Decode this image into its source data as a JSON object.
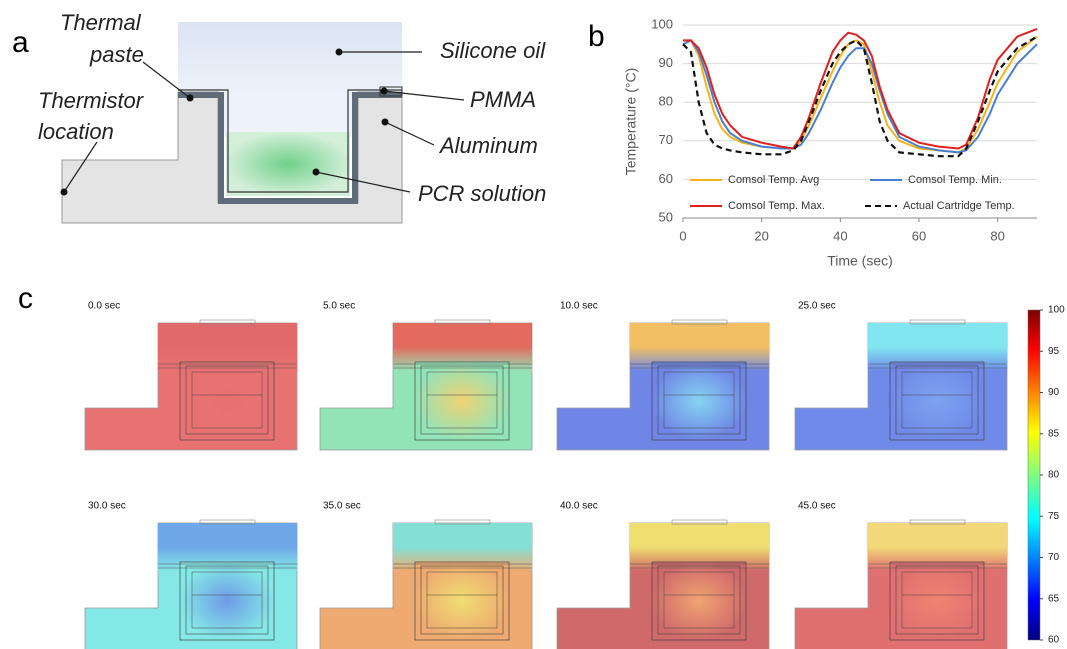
{
  "panel_labels": [
    "a",
    "b",
    "c"
  ],
  "diagram": {
    "labels": [
      "Thermal",
      "paste",
      "Thermistor",
      "location",
      "Silicone oil",
      "PMMA",
      "Aluminum",
      "PCR solution"
    ]
  },
  "chart_data": [
    {
      "type": "line",
      "x_label": "Time (sec)",
      "y_label": "Temperature (°C)",
      "x": [
        0,
        2,
        4,
        6,
        8,
        10,
        12,
        15,
        20,
        25,
        28,
        30,
        32,
        35,
        38,
        40,
        42,
        44,
        46,
        48,
        50,
        52,
        55,
        60,
        65,
        70,
        72,
        75,
        78,
        80,
        85,
        90
      ],
      "xlim": [
        0,
        90
      ],
      "xticks": [
        0,
        20,
        40,
        60,
        80
      ],
      "ylim": [
        50,
        100
      ],
      "yticks": [
        50,
        60,
        70,
        80,
        90,
        100
      ],
      "grid": true,
      "series": [
        {
          "name": "Comsol Temp. Avg",
          "color": "#f5b21a",
          "dash": false,
          "values": [
            96,
            96,
            92,
            84,
            77,
            73,
            71,
            69.5,
            68.5,
            68,
            68,
            70,
            74,
            81,
            88,
            92,
            95,
            96,
            95,
            88,
            80,
            74,
            70,
            68,
            67.5,
            67,
            68,
            73,
            80,
            85,
            93,
            97
          ]
        },
        {
          "name": "Comsol Temp. Min.",
          "color": "#4a7fd0",
          "dash": false,
          "values": [
            95,
            96,
            93,
            87,
            80,
            75,
            72,
            70,
            68.5,
            68,
            68,
            69,
            72,
            78,
            85,
            89,
            92,
            94,
            94,
            90,
            83,
            77,
            71,
            68.5,
            67.5,
            67,
            67.5,
            71,
            77,
            82,
            90,
            95
          ]
        },
        {
          "name": "Comsol Temp. Max.",
          "color": "#e0201e",
          "dash": false,
          "values": [
            96,
            96,
            94,
            89,
            82,
            77,
            74,
            71,
            69.5,
            68.5,
            68,
            71,
            76,
            85,
            93,
            96,
            98,
            97.5,
            96,
            92,
            84,
            78,
            72,
            69.5,
            68.5,
            68,
            69,
            76,
            86,
            91,
            97,
            99
          ]
        },
        {
          "name": "Actual Cartridge Temp.",
          "color": "#111111",
          "dash": true,
          "values": [
            95,
            93,
            80,
            72,
            69,
            68,
            67.5,
            67,
            66.5,
            66.5,
            67.5,
            70,
            75,
            83,
            90,
            93,
            95,
            96,
            94,
            85,
            75,
            70,
            67,
            66.5,
            66,
            66,
            68,
            75,
            83,
            88,
            94,
            97
          ]
        }
      ]
    },
    {
      "type": "colorbar",
      "ylim": [
        60,
        100
      ],
      "yticks": [
        60,
        65,
        70,
        75,
        80,
        85,
        90,
        95,
        100
      ]
    }
  ],
  "snapshots": {
    "labels": [
      "0.0 sec",
      "5.0 sec",
      "10.0 sec",
      "25.0 sec",
      "30.0 sec",
      "35.0 sec",
      "40.0 sec",
      "45.0 sec"
    ]
  }
}
